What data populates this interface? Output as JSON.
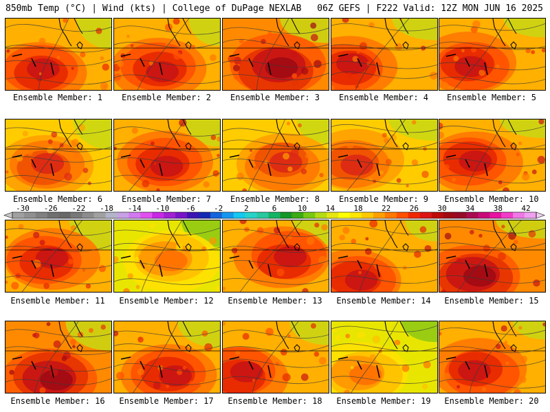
{
  "header": {
    "left": "850mb Temp (°C) | Wind (kts) | College of DuPage NEXLAB",
    "right": "06Z GEFS | F222 Valid: 12Z MON JUN 16 2025"
  },
  "members": [
    {
      "label": "Ensemble Member: 1",
      "palette": "hot"
    },
    {
      "label": "Ensemble Member: 2",
      "palette": "hot"
    },
    {
      "label": "Ensemble Member: 3",
      "palette": "veryhot"
    },
    {
      "label": "Ensemble Member: 4",
      "palette": "hot"
    },
    {
      "label": "Ensemble Member: 5",
      "palette": "hot"
    },
    {
      "label": "Ensemble Member: 6",
      "palette": "warm"
    },
    {
      "label": "Ensemble Member: 7",
      "palette": "hot"
    },
    {
      "label": "Ensemble Member: 8",
      "palette": "warm"
    },
    {
      "label": "Ensemble Member: 9",
      "palette": "warm"
    },
    {
      "label": "Ensemble Member: 10",
      "palette": "hot"
    },
    {
      "label": "Ensemble Member: 11",
      "palette": "hot"
    },
    {
      "label": "Ensemble Member: 12",
      "palette": "cool"
    },
    {
      "label": "Ensemble Member: 13",
      "palette": "hot"
    },
    {
      "label": "Ensemble Member: 14",
      "palette": "hot"
    },
    {
      "label": "Ensemble Member: 15",
      "palette": "veryhot"
    },
    {
      "label": "Ensemble Member: 16",
      "palette": "veryhot"
    },
    {
      "label": "Ensemble Member: 17",
      "palette": "hot"
    },
    {
      "label": "Ensemble Member: 18",
      "palette": "hot"
    },
    {
      "label": "Ensemble Member: 19",
      "palette": "cool"
    },
    {
      "label": "Ensemble Member: 20",
      "palette": "hot"
    }
  ],
  "colorbar": {
    "tick_labels": [
      "-30",
      "-26",
      "-22",
      "-18",
      "-14",
      "-10",
      "-6",
      "-2",
      "2",
      "6",
      "10",
      "14",
      "18",
      "22",
      "26",
      "30",
      "34",
      "38",
      "42"
    ],
    "colors": [
      "#a0a0a0",
      "#909090",
      "#808080",
      "#707070",
      "#686868",
      "#787878",
      "#8c8c8c",
      "#a0a0a0",
      "#b4b4c8",
      "#c8a0e6",
      "#d278f0",
      "#e050f0",
      "#c828e6",
      "#a020d2",
      "#7814c8",
      "#3c14b4",
      "#1428b4",
      "#1464dc",
      "#1496f0",
      "#14c8f0",
      "#28d2c8",
      "#28c8a0",
      "#14b464",
      "#149628",
      "#3caa14",
      "#78c814",
      "#b4dc14",
      "#e6e614",
      "#ffff00",
      "#ffe600",
      "#ffc800",
      "#ffa000",
      "#ff7800",
      "#ff5000",
      "#f02800",
      "#dc1414",
      "#be0a0a",
      "#a00a14",
      "#960a28",
      "#aa0a50",
      "#c80a78",
      "#e614a0",
      "#f03cc8",
      "#f078e6",
      "#f0a0f0"
    ]
  }
}
